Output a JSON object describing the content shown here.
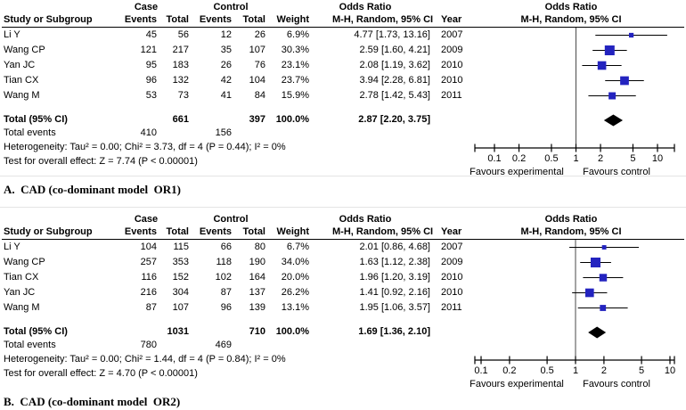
{
  "colors": {
    "marker": "#2323bf",
    "diamond": "#000000",
    "axis": "#000000",
    "no_effect_line": "#4a4a4a"
  },
  "chart_data": [
    {
      "type": "forest",
      "panel_id": "A",
      "caption": "A.  CAD (co-dominant model  OR1)",
      "headers": {
        "case_group": "Case",
        "control_group": "Control",
        "odds_ratio_left": "Odds Ratio",
        "odds_ratio_right": "Odds Ratio",
        "study": "Study or Subgroup",
        "events": "Events",
        "total": "Total",
        "weight": "Weight",
        "mh_random": "M-H, Random, 95% CI",
        "year": "Year"
      },
      "studies": [
        {
          "study": "Li Y",
          "case_events": "45",
          "case_total": "56",
          "control_events": "12",
          "control_total": "26",
          "weight": "6.9%",
          "weight_pct": 6.9,
          "or": 4.77,
          "ci_low": 1.73,
          "ci_high": 13.16,
          "or_ci_text": "4.77 [1.73, 13.16]",
          "year": "2007"
        },
        {
          "study": "Wang CP",
          "case_events": "121",
          "case_total": "217",
          "control_events": "35",
          "control_total": "107",
          "weight": "30.3%",
          "weight_pct": 30.3,
          "or": 2.59,
          "ci_low": 1.6,
          "ci_high": 4.21,
          "or_ci_text": "2.59 [1.60, 4.21]",
          "year": "2009"
        },
        {
          "study": "Yan JC",
          "case_events": "95",
          "case_total": "183",
          "control_events": "26",
          "control_total": "76",
          "weight": "23.1%",
          "weight_pct": 23.1,
          "or": 2.08,
          "ci_low": 1.19,
          "ci_high": 3.62,
          "or_ci_text": "2.08 [1.19, 3.62]",
          "year": "2010"
        },
        {
          "study": "Tian CX",
          "case_events": "96",
          "case_total": "132",
          "control_events": "42",
          "control_total": "104",
          "weight": "23.7%",
          "weight_pct": 23.7,
          "or": 3.94,
          "ci_low": 2.28,
          "ci_high": 6.81,
          "or_ci_text": "3.94 [2.28, 6.81]",
          "year": "2010"
        },
        {
          "study": "Wang M",
          "case_events": "53",
          "case_total": "73",
          "control_events": "41",
          "control_total": "84",
          "weight": "15.9%",
          "weight_pct": 15.9,
          "or": 2.78,
          "ci_low": 1.42,
          "ci_high": 5.43,
          "or_ci_text": "2.78 [1.42, 5.43]",
          "year": "2011"
        }
      ],
      "total_row": {
        "label": "Total (95% CI)",
        "case_total": "661",
        "control_total": "397",
        "weight": "100.0%",
        "or": 2.87,
        "ci_low": 2.2,
        "ci_high": 3.75,
        "or_ci_text": "2.87 [2.20, 3.75]"
      },
      "total_events_row": {
        "label": "Total events",
        "case_events": "410",
        "control_events": "156"
      },
      "heterogeneity": "Heterogeneity: Tau² = 0.00; Chi² = 3.73, df = 4 (P = 0.44); I² = 0%",
      "overall_effect": "Test for overall effect: Z = 7.74 (P < 0.00001)",
      "axis": {
        "scale": "log",
        "ticks": [
          0.1,
          0.2,
          0.5,
          1,
          2,
          5,
          10
        ],
        "favours_left": "Favours experimental",
        "favours_right": "Favours control"
      }
    },
    {
      "type": "forest",
      "panel_id": "B",
      "caption": "B.  CAD (co-dominant model  OR2)",
      "headers": {
        "case_group": "Case",
        "control_group": "Control",
        "odds_ratio_left": "Odds Ratio",
        "odds_ratio_right": "Odds Ratio",
        "study": "Study or Subgroup",
        "events": "Events",
        "total": "Total",
        "weight": "Weight",
        "mh_random": "M-H, Random, 95% CI",
        "year": "Year"
      },
      "studies": [
        {
          "study": "Li Y",
          "case_events": "104",
          "case_total": "115",
          "control_events": "66",
          "control_total": "80",
          "weight": "6.7%",
          "weight_pct": 6.7,
          "or": 2.01,
          "ci_low": 0.86,
          "ci_high": 4.68,
          "or_ci_text": "2.01 [0.86, 4.68]",
          "year": "2007"
        },
        {
          "study": "Wang CP",
          "case_events": "257",
          "case_total": "353",
          "control_events": "118",
          "control_total": "190",
          "weight": "34.0%",
          "weight_pct": 34.0,
          "or": 1.63,
          "ci_low": 1.12,
          "ci_high": 2.38,
          "or_ci_text": "1.63 [1.12, 2.38]",
          "year": "2009"
        },
        {
          "study": "Tian CX",
          "case_events": "116",
          "case_total": "152",
          "control_events": "102",
          "control_total": "164",
          "weight": "20.0%",
          "weight_pct": 20.0,
          "or": 1.96,
          "ci_low": 1.2,
          "ci_high": 3.19,
          "or_ci_text": "1.96 [1.20, 3.19]",
          "year": "2010"
        },
        {
          "study": "Yan JC",
          "case_events": "216",
          "case_total": "304",
          "control_events": "87",
          "control_total": "137",
          "weight": "26.2%",
          "weight_pct": 26.2,
          "or": 1.41,
          "ci_low": 0.92,
          "ci_high": 2.16,
          "or_ci_text": "1.41 [0.92, 2.16]",
          "year": "2010"
        },
        {
          "study": "Wang M",
          "case_events": "87",
          "case_total": "107",
          "control_events": "96",
          "control_total": "139",
          "weight": "13.1%",
          "weight_pct": 13.1,
          "or": 1.95,
          "ci_low": 1.06,
          "ci_high": 3.57,
          "or_ci_text": "1.95 [1.06, 3.57]",
          "year": "2011"
        }
      ],
      "total_row": {
        "label": "Total (95% CI)",
        "case_total": "1031",
        "control_total": "710",
        "weight": "100.0%",
        "or": 1.69,
        "ci_low": 1.36,
        "ci_high": 2.1,
        "or_ci_text": "1.69 [1.36, 2.10]"
      },
      "total_events_row": {
        "label": "Total events",
        "case_events": "780",
        "control_events": "469"
      },
      "heterogeneity": "Heterogeneity: Tau² = 0.00; Chi² = 1.44, df = 4 (P = 0.84); I² = 0%",
      "overall_effect": "Test for overall effect: Z = 4.70 (P < 0.00001)",
      "axis": {
        "scale": "log",
        "ticks": [
          0.1,
          0.2,
          0.5,
          1,
          2,
          5,
          10
        ],
        "favours_left": "Favours experimental",
        "favours_right": "Favours control"
      }
    }
  ]
}
